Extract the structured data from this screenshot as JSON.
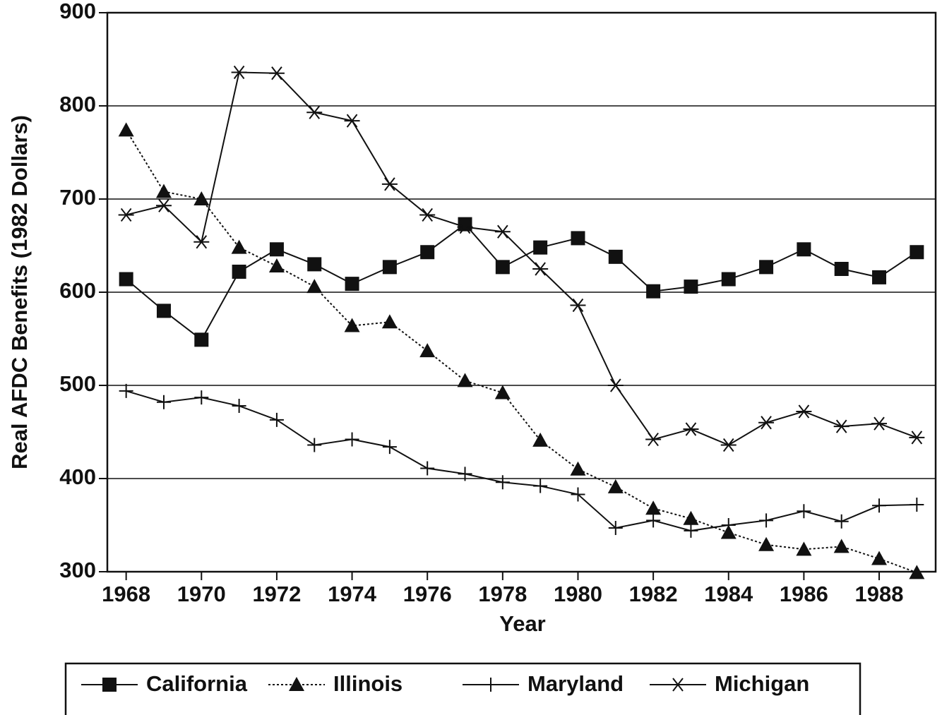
{
  "chart_data": {
    "type": "line",
    "xlabel": "Year",
    "ylabel": "Real AFDC Benefits (1982 Dollars)",
    "x": [
      1968,
      1969,
      1970,
      1971,
      1972,
      1973,
      1974,
      1975,
      1976,
      1977,
      1978,
      1979,
      1980,
      1981,
      1982,
      1983,
      1984,
      1985,
      1986,
      1987,
      1988,
      1989
    ],
    "series": [
      {
        "name": "California",
        "color": "#111111",
        "marker": "square",
        "dash": "solid",
        "values": [
          614,
          580,
          549,
          622,
          646,
          630,
          609,
          627,
          643,
          673,
          627,
          648,
          658,
          638,
          601,
          606,
          614,
          627,
          646,
          625,
          616,
          643
        ]
      },
      {
        "name": "Illinois",
        "color": "#111111",
        "marker": "triangle",
        "dash": "dotted",
        "values": [
          774,
          708,
          700,
          648,
          628,
          606,
          564,
          568,
          537,
          505,
          492,
          441,
          410,
          391,
          368,
          357,
          342,
          329,
          324,
          327,
          314,
          299
        ]
      },
      {
        "name": "Maryland",
        "color": "#111111",
        "marker": "plus",
        "dash": "solid",
        "values": [
          494,
          482,
          487,
          478,
          463,
          436,
          442,
          434,
          411,
          405,
          396,
          392,
          383,
          347,
          355,
          344,
          350,
          355,
          365,
          354,
          371,
          372
        ]
      },
      {
        "name": "Michigan",
        "color": "#111111",
        "marker": "asterisk",
        "dash": "solid",
        "values": [
          683,
          693,
          654,
          836,
          835,
          793,
          784,
          716,
          683,
          670,
          665,
          625,
          586,
          500,
          442,
          453,
          436,
          460,
          472,
          456,
          459,
          444
        ]
      }
    ],
    "xlim": [
      1967.5,
      1989.5
    ],
    "xticks": [
      1968,
      1970,
      1972,
      1974,
      1976,
      1978,
      1980,
      1982,
      1984,
      1986,
      1988
    ],
    "ylim": [
      300,
      900
    ],
    "yticks": [
      300,
      400,
      500,
      600,
      700,
      800,
      900
    ],
    "grid": true,
    "legend": "bottom"
  }
}
